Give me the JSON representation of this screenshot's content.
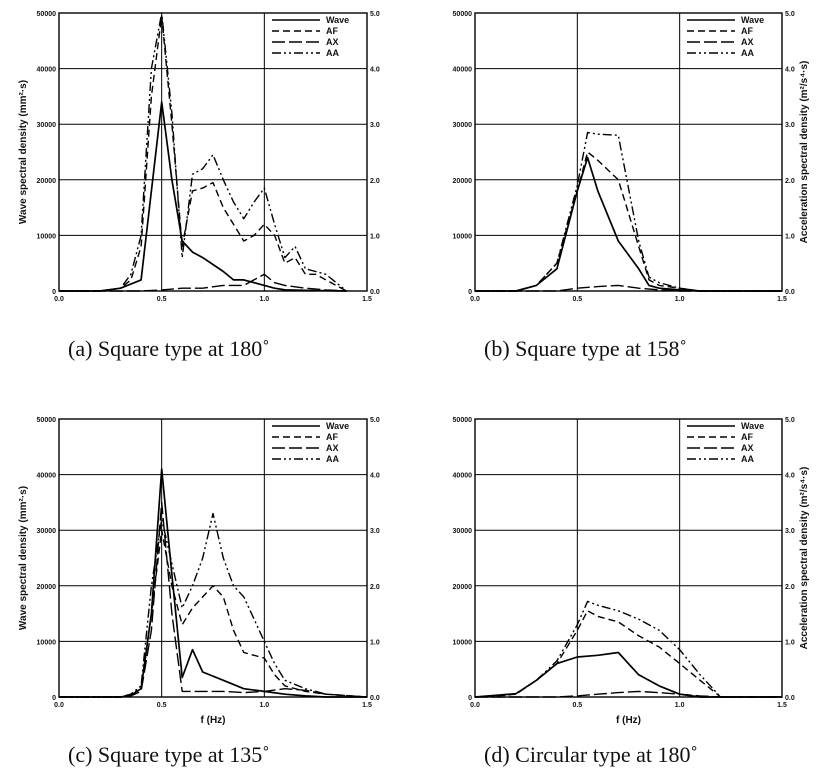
{
  "figure": {
    "panels": [
      {
        "caption": "(a)  Square type  at  180˚",
        "left_axis_label": "Wave spectral density (mm²·s)",
        "right_axis_label": "",
        "x_axis_label": "",
        "legend": [
          "Wave",
          "AF",
          "AX",
          "AA"
        ],
        "left_ticks": [
          "0",
          "10000",
          "20000",
          "30000",
          "40000",
          "50000"
        ],
        "right_ticks": [
          "0.0",
          "1.0",
          "2.0",
          "3.0",
          "4.0",
          "5.0"
        ],
        "x_ticks": [
          "0.0",
          "0.5",
          "1.0",
          "1.5"
        ]
      },
      {
        "caption": "(b)  Square type  at  158˚",
        "left_axis_label": "",
        "right_axis_label": "Acceleration spectral density (m²/s⁴·s)",
        "x_axis_label": "",
        "legend": [
          "Wave",
          "AF",
          "AX",
          "AA"
        ],
        "left_ticks": [
          "0",
          "10000",
          "20000",
          "30000",
          "40000",
          "50000"
        ],
        "right_ticks": [
          "0.0",
          "1.0",
          "2.0",
          "3.0",
          "4.0",
          "5.0"
        ],
        "x_ticks": [
          "0.0",
          "0.5",
          "1.0",
          "1.5"
        ]
      },
      {
        "caption": "(c)  Square type  at  135˚",
        "left_axis_label": "Wave spectral density (mm²·s)",
        "right_axis_label": "",
        "x_axis_label": "f (Hz)",
        "legend": [
          "Wave",
          "AF",
          "AX",
          "AA"
        ],
        "left_ticks": [
          "0",
          "10000",
          "20000",
          "30000",
          "40000",
          "50000"
        ],
        "right_ticks": [
          "0.0",
          "1.0",
          "2.0",
          "3.0",
          "4.0",
          "5.0"
        ],
        "x_ticks": [
          "0.0",
          "0.5",
          "1.0",
          "1.5"
        ]
      },
      {
        "caption": "(d)  Circular type  at  180˚",
        "left_axis_label": "",
        "right_axis_label": "Acceleration spectral density (m²/s⁴·s)",
        "x_axis_label": "f (Hz)",
        "legend": [
          "Wave",
          "AF",
          "AX",
          "AA"
        ],
        "left_ticks": [
          "0",
          "10000",
          "20000",
          "30000",
          "40000",
          "50000"
        ],
        "right_ticks": [
          "0.0",
          "1.0",
          "2.0",
          "3.0",
          "4.0",
          "5.0"
        ],
        "x_ticks": [
          "0.0",
          "0.5",
          "1.0",
          "1.5"
        ]
      }
    ]
  },
  "chart_data": [
    {
      "type": "line",
      "xlim": [
        0,
        1.5
      ],
      "ylim": [
        0,
        50000
      ],
      "y2lim": [
        0,
        5
      ],
      "grid": true,
      "legend_position": "top-right",
      "series": [
        {
          "name": "Wave",
          "dash": "solid",
          "axis": "left",
          "x": [
            0,
            0.1,
            0.2,
            0.3,
            0.4,
            0.5,
            0.55,
            0.6,
            0.65,
            0.7,
            0.8,
            0.85,
            0.9,
            1.0,
            1.05,
            1.1,
            1.2,
            1.3,
            1.4
          ],
          "y": [
            0,
            0,
            0,
            500,
            2000,
            34000,
            20000,
            9000,
            7000,
            6000,
            3500,
            2000,
            2000,
            1000,
            500,
            200,
            100,
            50,
            0
          ]
        },
        {
          "name": "AF",
          "dash": "dash",
          "axis": "right",
          "x": [
            0,
            0.1,
            0.2,
            0.3,
            0.35,
            0.4,
            0.45,
            0.5,
            0.55,
            0.6,
            0.65,
            0.7,
            0.75,
            0.8,
            0.85,
            0.9,
            0.95,
            1.0,
            1.05,
            1.1,
            1.15,
            1.2,
            1.25,
            1.3,
            1.4
          ],
          "y": [
            0,
            0,
            0,
            0.05,
            0.2,
            0.8,
            3.5,
            4.95,
            3.0,
            0.8,
            1.8,
            1.85,
            1.95,
            1.5,
            1.2,
            0.9,
            1.0,
            1.2,
            1.0,
            0.5,
            0.6,
            0.3,
            0.3,
            0.2,
            0
          ]
        },
        {
          "name": "AX",
          "dash": "longdash",
          "axis": "right",
          "x": [
            0,
            0.4,
            0.5,
            0.6,
            0.7,
            0.8,
            0.9,
            1.0,
            1.05,
            1.1,
            1.2,
            1.3,
            1.4
          ],
          "y": [
            0,
            0,
            0.02,
            0.05,
            0.05,
            0.1,
            0.1,
            0.3,
            0.15,
            0.1,
            0.05,
            0.02,
            0
          ]
        },
        {
          "name": "AA",
          "dash": "dashdotdot",
          "axis": "right",
          "x": [
            0,
            0.1,
            0.2,
            0.3,
            0.35,
            0.4,
            0.45,
            0.5,
            0.55,
            0.6,
            0.65,
            0.7,
            0.75,
            0.8,
            0.85,
            0.9,
            0.95,
            1.0,
            1.05,
            1.1,
            1.15,
            1.2,
            1.25,
            1.3,
            1.4
          ],
          "y": [
            0,
            0,
            0,
            0.05,
            0.3,
            1.0,
            4.0,
            5.0,
            3.2,
            0.6,
            2.1,
            2.2,
            2.45,
            2.0,
            1.6,
            1.3,
            1.6,
            1.85,
            1.2,
            0.6,
            0.8,
            0.4,
            0.35,
            0.3,
            0
          ]
        }
      ]
    },
    {
      "type": "line",
      "xlim": [
        0,
        1.5
      ],
      "ylim": [
        0,
        50000
      ],
      "y2lim": [
        0,
        5
      ],
      "grid": true,
      "legend_position": "top-right",
      "series": [
        {
          "name": "Wave",
          "dash": "solid",
          "axis": "left",
          "x": [
            0,
            0.2,
            0.3,
            0.4,
            0.5,
            0.55,
            0.6,
            0.7,
            0.8,
            0.85,
            0.9,
            1.0,
            1.1,
            1.5
          ],
          "y": [
            0,
            0,
            1000,
            4000,
            18000,
            24000,
            18000,
            9000,
            4000,
            1000,
            500,
            200,
            0,
            0
          ]
        },
        {
          "name": "AF",
          "dash": "dash",
          "axis": "right",
          "x": [
            0,
            0.2,
            0.3,
            0.4,
            0.5,
            0.55,
            0.6,
            0.7,
            0.8,
            0.85,
            0.9,
            1.0,
            1.1,
            1.5
          ],
          "y": [
            0,
            0,
            0.1,
            0.5,
            1.8,
            2.5,
            2.35,
            2.0,
            0.8,
            0.2,
            0.1,
            0.05,
            0,
            0
          ]
        },
        {
          "name": "AX",
          "dash": "longdash",
          "axis": "right",
          "x": [
            0,
            0.4,
            0.5,
            0.6,
            0.7,
            0.8,
            0.9,
            1.0,
            1.5
          ],
          "y": [
            0,
            0,
            0.05,
            0.08,
            0.1,
            0.05,
            0.02,
            0,
            0
          ]
        },
        {
          "name": "AA",
          "dash": "dashdotdot",
          "axis": "right",
          "x": [
            0,
            0.2,
            0.3,
            0.4,
            0.5,
            0.55,
            0.6,
            0.7,
            0.8,
            0.85,
            0.9,
            1.0,
            1.1,
            1.5
          ],
          "y": [
            0,
            0,
            0.1,
            0.5,
            1.9,
            2.85,
            2.82,
            2.8,
            0.9,
            0.25,
            0.15,
            0.05,
            0,
            0
          ]
        }
      ]
    },
    {
      "type": "line",
      "xlim": [
        0,
        1.5
      ],
      "ylim": [
        0,
        50000
      ],
      "y2lim": [
        0,
        5
      ],
      "grid": true,
      "legend_position": "top-right",
      "series": [
        {
          "name": "Wave",
          "dash": "solid",
          "axis": "left",
          "x": [
            0,
            0.3,
            0.35,
            0.4,
            0.45,
            0.5,
            0.55,
            0.6,
            0.65,
            0.7,
            0.8,
            0.9,
            1.0,
            1.1,
            1.2,
            1.3,
            1.5
          ],
          "y": [
            0,
            0,
            300,
            1500,
            15000,
            41000,
            22000,
            3500,
            8500,
            4500,
            3000,
            1500,
            1000,
            500,
            200,
            0,
            0
          ]
        },
        {
          "name": "AF",
          "dash": "dash",
          "axis": "right",
          "x": [
            0,
            0.3,
            0.35,
            0.4,
            0.45,
            0.5,
            0.55,
            0.6,
            0.65,
            0.7,
            0.75,
            0.8,
            0.85,
            0.9,
            1.0,
            1.05,
            1.1,
            1.2,
            1.3,
            1.5
          ],
          "y": [
            0,
            0,
            0.05,
            0.15,
            1.5,
            3.0,
            2.0,
            1.3,
            1.6,
            1.8,
            2.0,
            1.8,
            1.2,
            0.8,
            0.7,
            0.4,
            0.2,
            0.1,
            0.05,
            0
          ]
        },
        {
          "name": "AX",
          "dash": "longdash",
          "axis": "right",
          "x": [
            0,
            0.3,
            0.35,
            0.4,
            0.45,
            0.5,
            0.55,
            0.6,
            0.7,
            0.8,
            0.9,
            1.0,
            1.1,
            1.2,
            1.3,
            1.5
          ],
          "y": [
            0,
            0,
            0.02,
            0.1,
            1.2,
            3.5,
            1.5,
            0.1,
            0.1,
            0.1,
            0.08,
            0.1,
            0.15,
            0.12,
            0.05,
            0
          ]
        },
        {
          "name": "AA",
          "dash": "dashdotdot",
          "axis": "right",
          "x": [
            0,
            0.3,
            0.35,
            0.4,
            0.45,
            0.5,
            0.55,
            0.6,
            0.65,
            0.7,
            0.75,
            0.8,
            0.85,
            0.9,
            0.95,
            1.0,
            1.05,
            1.1,
            1.2,
            1.3,
            1.5
          ],
          "y": [
            0,
            0,
            0.05,
            0.2,
            2.0,
            3.2,
            2.4,
            1.6,
            2.0,
            2.5,
            3.3,
            2.5,
            2.0,
            1.8,
            1.4,
            1.0,
            0.6,
            0.3,
            0.15,
            0.05,
            0
          ]
        }
      ]
    },
    {
      "type": "line",
      "xlim": [
        0,
        1.5
      ],
      "ylim": [
        0,
        50000
      ],
      "y2lim": [
        0,
        5
      ],
      "grid": true,
      "legend_position": "top-right",
      "series": [
        {
          "name": "Wave",
          "dash": "solid",
          "axis": "left",
          "x": [
            0,
            0.1,
            0.2,
            0.3,
            0.4,
            0.5,
            0.6,
            0.7,
            0.8,
            0.9,
            1.0,
            1.1,
            1.2,
            1.5
          ],
          "y": [
            0,
            300,
            600,
            3000,
            6000,
            7200,
            7500,
            8000,
            4000,
            2000,
            500,
            0,
            0,
            0
          ]
        },
        {
          "name": "AF",
          "dash": "dash",
          "axis": "right",
          "x": [
            0,
            0.1,
            0.2,
            0.3,
            0.4,
            0.5,
            0.55,
            0.6,
            0.7,
            0.8,
            0.9,
            1.0,
            1.1,
            1.2,
            1.5
          ],
          "y": [
            0,
            0.02,
            0.05,
            0.3,
            0.6,
            1.2,
            1.55,
            1.45,
            1.35,
            1.1,
            0.9,
            0.6,
            0.3,
            0,
            0
          ]
        },
        {
          "name": "AX",
          "dash": "longdash",
          "axis": "right",
          "x": [
            0,
            0.4,
            0.5,
            0.6,
            0.7,
            0.8,
            0.9,
            1.0,
            1.1,
            1.2,
            1.5
          ],
          "y": [
            0,
            0,
            0.02,
            0.05,
            0.08,
            0.1,
            0.08,
            0.05,
            0.02,
            0,
            0
          ]
        },
        {
          "name": "AA",
          "dash": "dashdotdot",
          "axis": "right",
          "x": [
            0,
            0.1,
            0.2,
            0.3,
            0.4,
            0.5,
            0.55,
            0.6,
            0.7,
            0.8,
            0.9,
            1.0,
            1.1,
            1.2,
            1.5
          ],
          "y": [
            0,
            0.02,
            0.05,
            0.3,
            0.65,
            1.3,
            1.72,
            1.65,
            1.55,
            1.4,
            1.2,
            0.85,
            0.4,
            0,
            0
          ]
        }
      ]
    }
  ]
}
